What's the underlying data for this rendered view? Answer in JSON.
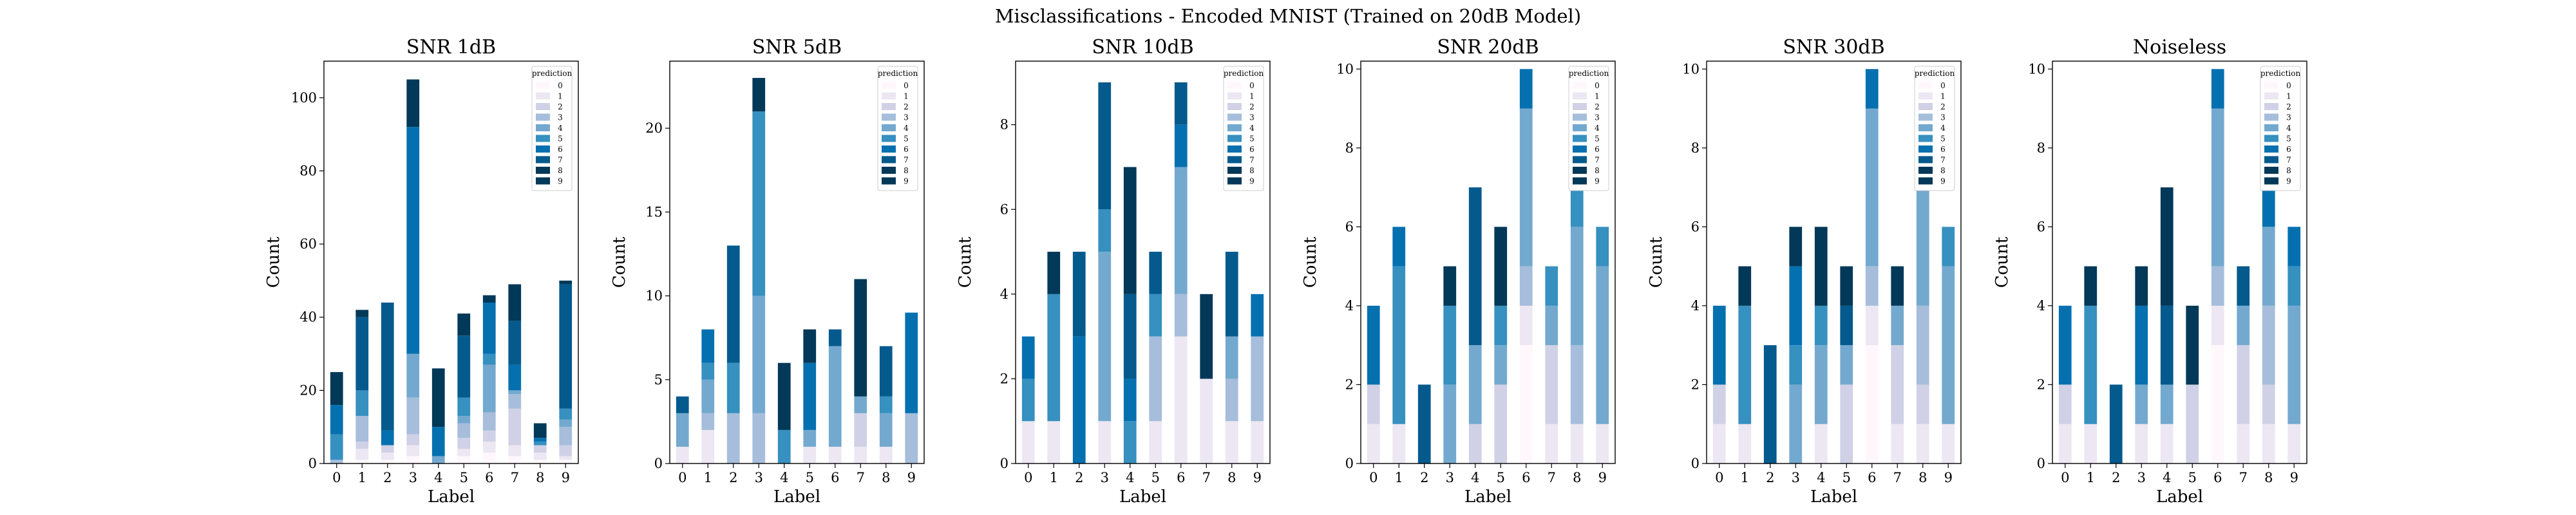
{
  "figure": {
    "suptitle": "Misclassifications - Encoded MNIST (Trained on 20dB Model)"
  },
  "palette": [
    "#fff7fb",
    "#ece7f2",
    "#d0d1e6",
    "#a6bddb",
    "#74a9cf",
    "#3690c0",
    "#0570b0",
    "#045a8d",
    "#023858",
    "#023858"
  ],
  "chart_data": [
    {
      "type": "bar",
      "stacked": true,
      "title": "SNR 1dB",
      "xlabel": "Label",
      "ylabel": "Count",
      "categories": [
        "0",
        "1",
        "2",
        "3",
        "4",
        "5",
        "6",
        "7",
        "8",
        "9"
      ],
      "ylim": [
        0,
        110
      ],
      "yticks": [
        0,
        20,
        40,
        60,
        80,
        100
      ],
      "legend": {
        "title": "prediction",
        "labels": [
          "0",
          "1",
          "2",
          "3",
          "4",
          "5",
          "6",
          "7",
          "8",
          "9"
        ],
        "placement": "top-right"
      },
      "series": [
        {
          "name": "0",
          "values": [
            0,
            1,
            1,
            2,
            0,
            2,
            3,
            2,
            1,
            1
          ]
        },
        {
          "name": "1",
          "values": [
            0,
            3,
            2,
            3,
            0,
            2,
            3,
            3,
            2,
            1
          ]
        },
        {
          "name": "2",
          "values": [
            0,
            2,
            2,
            3,
            0,
            3,
            3,
            10,
            2,
            3
          ]
        },
        {
          "name": "3",
          "values": [
            1,
            7,
            0,
            10,
            0,
            4,
            5,
            4,
            0,
            5
          ]
        },
        {
          "name": "4",
          "values": [
            0,
            0,
            0,
            12,
            2,
            2,
            13,
            1,
            0,
            2
          ]
        },
        {
          "name": "5",
          "values": [
            7,
            7,
            0,
            0,
            0,
            5,
            3,
            0,
            1,
            3
          ]
        },
        {
          "name": "6",
          "values": [
            8,
            0,
            4,
            62,
            8,
            0,
            14,
            7,
            1,
            0
          ]
        },
        {
          "name": "7",
          "values": [
            0,
            20,
            35,
            0,
            0,
            17,
            0,
            12,
            0,
            34
          ]
        },
        {
          "name": "8",
          "values": [
            9,
            2,
            0,
            13,
            16,
            6,
            2,
            10,
            4,
            1
          ]
        },
        {
          "name": "9",
          "values": [
            0,
            0,
            0,
            0,
            0,
            0,
            0,
            0,
            0,
            0
          ]
        }
      ]
    },
    {
      "type": "bar",
      "stacked": true,
      "title": "SNR 5dB",
      "xlabel": "Label",
      "ylabel": "Count",
      "categories": [
        "0",
        "1",
        "2",
        "3",
        "4",
        "5",
        "6",
        "7",
        "8",
        "9"
      ],
      "ylim": [
        0,
        24
      ],
      "yticks": [
        0,
        5,
        10,
        15,
        20
      ],
      "legend": {
        "title": "prediction",
        "labels": [
          "0",
          "1",
          "2",
          "3",
          "4",
          "5",
          "6",
          "7",
          "8",
          "9"
        ],
        "placement": "top-right"
      },
      "series": [
        {
          "name": "0",
          "values": [
            0,
            0,
            0,
            0,
            0,
            0,
            0,
            0,
            0,
            0
          ]
        },
        {
          "name": "1",
          "values": [
            1,
            2,
            0,
            0,
            0,
            1,
            1,
            1,
            1,
            0
          ]
        },
        {
          "name": "2",
          "values": [
            0,
            0,
            0,
            0,
            0,
            0,
            0,
            2,
            0,
            0
          ]
        },
        {
          "name": "3",
          "values": [
            0,
            1,
            3,
            3,
            0,
            0,
            0,
            0,
            0,
            3
          ]
        },
        {
          "name": "4",
          "values": [
            2,
            2,
            0,
            7,
            0,
            1,
            6,
            1,
            2,
            0
          ]
        },
        {
          "name": "5",
          "values": [
            0,
            1,
            3,
            11,
            2,
            0,
            0,
            0,
            1,
            0
          ]
        },
        {
          "name": "6",
          "values": [
            0,
            2,
            0,
            0,
            0,
            4,
            0,
            0,
            0,
            6
          ]
        },
        {
          "name": "7",
          "values": [
            1,
            0,
            7,
            0,
            0,
            0,
            1,
            0,
            3,
            0
          ]
        },
        {
          "name": "8",
          "values": [
            0,
            0,
            0,
            2,
            4,
            2,
            0,
            7,
            0,
            0
          ]
        },
        {
          "name": "9",
          "values": [
            0,
            0,
            0,
            0,
            0,
            0,
            0,
            0,
            0,
            0
          ]
        }
      ]
    },
    {
      "type": "bar",
      "stacked": true,
      "title": "SNR 10dB",
      "xlabel": "Label",
      "ylabel": "Count",
      "categories": [
        "0",
        "1",
        "2",
        "3",
        "4",
        "5",
        "6",
        "7",
        "8",
        "9"
      ],
      "ylim": [
        0,
        9.5
      ],
      "yticks": [
        0,
        2,
        4,
        6,
        8
      ],
      "legend": {
        "title": "prediction",
        "labels": [
          "0",
          "1",
          "2",
          "3",
          "4",
          "5",
          "6",
          "7",
          "8",
          "9"
        ],
        "placement": "top-right"
      },
      "series": [
        {
          "name": "0",
          "values": [
            0,
            0,
            0,
            0,
            0,
            0,
            0,
            0,
            0,
            0
          ]
        },
        {
          "name": "1",
          "values": [
            1,
            1,
            0,
            1,
            0,
            1,
            3,
            2,
            1,
            1
          ]
        },
        {
          "name": "2",
          "values": [
            0,
            0,
            0,
            0,
            0,
            0,
            0,
            0,
            0,
            0
          ]
        },
        {
          "name": "3",
          "values": [
            0,
            0,
            0,
            0,
            0,
            2,
            1,
            0,
            1,
            2
          ]
        },
        {
          "name": "4",
          "values": [
            0,
            0,
            0,
            4,
            0,
            0,
            3,
            0,
            1,
            0
          ]
        },
        {
          "name": "5",
          "values": [
            1,
            3,
            0,
            1,
            1,
            1,
            0,
            0,
            0,
            0
          ]
        },
        {
          "name": "6",
          "values": [
            1,
            0,
            3,
            0,
            1,
            0,
            1,
            0,
            0,
            1
          ]
        },
        {
          "name": "7",
          "values": [
            0,
            0,
            2,
            3,
            2,
            1,
            1,
            0,
            2,
            0
          ]
        },
        {
          "name": "8",
          "values": [
            0,
            1,
            0,
            0,
            3,
            0,
            0,
            2,
            0,
            0
          ]
        },
        {
          "name": "9",
          "values": [
            0,
            0,
            0,
            0,
            0,
            0,
            0,
            0,
            0,
            0
          ]
        }
      ]
    },
    {
      "type": "bar",
      "stacked": true,
      "title": "SNR 20dB",
      "xlabel": "Label",
      "ylabel": "Count",
      "categories": [
        "0",
        "1",
        "2",
        "3",
        "4",
        "5",
        "6",
        "7",
        "8",
        "9"
      ],
      "ylim": [
        0,
        10.2
      ],
      "yticks": [
        0,
        2,
        4,
        6,
        8,
        10
      ],
      "legend": {
        "title": "prediction",
        "labels": [
          "0",
          "1",
          "2",
          "3",
          "4",
          "5",
          "6",
          "7",
          "8",
          "9"
        ],
        "placement": "top-right"
      },
      "series": [
        {
          "name": "0",
          "values": [
            0,
            0,
            0,
            0,
            0,
            0,
            3,
            0,
            0,
            0
          ]
        },
        {
          "name": "1",
          "values": [
            1,
            1,
            0,
            0,
            0,
            0,
            1,
            1,
            1,
            1
          ]
        },
        {
          "name": "2",
          "values": [
            1,
            0,
            0,
            0,
            1,
            2,
            0,
            2,
            0,
            0
          ]
        },
        {
          "name": "3",
          "values": [
            0,
            0,
            0,
            0,
            0,
            0,
            1,
            0,
            2,
            0
          ]
        },
        {
          "name": "4",
          "values": [
            0,
            0,
            0,
            2,
            2,
            1,
            4,
            1,
            3,
            4
          ]
        },
        {
          "name": "5",
          "values": [
            0,
            4,
            0,
            2,
            0,
            1,
            0,
            1,
            1,
            1
          ]
        },
        {
          "name": "6",
          "values": [
            2,
            1,
            0,
            0,
            0,
            0,
            1,
            0,
            0,
            0
          ]
        },
        {
          "name": "7",
          "values": [
            0,
            0,
            2,
            0,
            4,
            0,
            0,
            0,
            0,
            0
          ]
        },
        {
          "name": "8",
          "values": [
            0,
            0,
            0,
            1,
            0,
            2,
            0,
            0,
            0,
            0
          ]
        },
        {
          "name": "9",
          "values": [
            0,
            0,
            0,
            0,
            0,
            0,
            0,
            0,
            0,
            0
          ]
        }
      ]
    },
    {
      "type": "bar",
      "stacked": true,
      "title": "SNR 30dB",
      "xlabel": "Label",
      "ylabel": "Count",
      "categories": [
        "0",
        "1",
        "2",
        "3",
        "4",
        "5",
        "6",
        "7",
        "8",
        "9"
      ],
      "ylim": [
        0,
        10.2
      ],
      "yticks": [
        0,
        2,
        4,
        6,
        8,
        10
      ],
      "legend": {
        "title": "prediction",
        "labels": [
          "0",
          "1",
          "2",
          "3",
          "4",
          "5",
          "6",
          "7",
          "8",
          "9"
        ],
        "placement": "top-right"
      },
      "series": [
        {
          "name": "0",
          "values": [
            0,
            0,
            0,
            0,
            0,
            0,
            3,
            0,
            0,
            0
          ]
        },
        {
          "name": "1",
          "values": [
            1,
            1,
            0,
            0,
            1,
            0,
            1,
            1,
            1,
            1
          ]
        },
        {
          "name": "2",
          "values": [
            1,
            0,
            0,
            0,
            0,
            2,
            0,
            2,
            1,
            0
          ]
        },
        {
          "name": "3",
          "values": [
            0,
            0,
            0,
            0,
            0,
            0,
            1,
            0,
            2,
            0
          ]
        },
        {
          "name": "4",
          "values": [
            0,
            0,
            0,
            2,
            2,
            1,
            4,
            1,
            3,
            4
          ]
        },
        {
          "name": "5",
          "values": [
            0,
            3,
            0,
            1,
            1,
            0,
            0,
            0,
            0,
            1
          ]
        },
        {
          "name": "6",
          "values": [
            2,
            0,
            0,
            2,
            0,
            0,
            1,
            0,
            1,
            0
          ]
        },
        {
          "name": "7",
          "values": [
            0,
            0,
            3,
            0,
            0,
            1,
            0,
            0,
            0,
            0
          ]
        },
        {
          "name": "8",
          "values": [
            0,
            1,
            0,
            1,
            2,
            1,
            0,
            1,
            1,
            0
          ]
        },
        {
          "name": "9",
          "values": [
            0,
            0,
            0,
            0,
            0,
            0,
            0,
            0,
            0,
            0
          ]
        }
      ]
    },
    {
      "type": "bar",
      "stacked": true,
      "title": "Noiseless",
      "xlabel": "Label",
      "ylabel": "Count",
      "categories": [
        "0",
        "1",
        "2",
        "3",
        "4",
        "5",
        "6",
        "7",
        "8",
        "9"
      ],
      "ylim": [
        0,
        10.2
      ],
      "yticks": [
        0,
        2,
        4,
        6,
        8,
        10
      ],
      "legend": {
        "title": "prediction",
        "labels": [
          "0",
          "1",
          "2",
          "3",
          "4",
          "5",
          "6",
          "7",
          "8",
          "9"
        ],
        "placement": "top-right"
      },
      "series": [
        {
          "name": "0",
          "values": [
            0,
            0,
            0,
            0,
            0,
            0,
            3,
            0,
            0,
            0
          ]
        },
        {
          "name": "1",
          "values": [
            1,
            1,
            0,
            1,
            1,
            0,
            1,
            1,
            1,
            1
          ]
        },
        {
          "name": "2",
          "values": [
            1,
            0,
            0,
            0,
            0,
            2,
            0,
            2,
            1,
            0
          ]
        },
        {
          "name": "3",
          "values": [
            0,
            0,
            0,
            0,
            0,
            0,
            1,
            0,
            2,
            0
          ]
        },
        {
          "name": "4",
          "values": [
            0,
            0,
            0,
            1,
            1,
            0,
            4,
            1,
            2,
            3
          ]
        },
        {
          "name": "5",
          "values": [
            0,
            3,
            0,
            0,
            0,
            0,
            0,
            0,
            0,
            1
          ]
        },
        {
          "name": "6",
          "values": [
            2,
            0,
            0,
            2,
            0,
            0,
            1,
            0,
            1,
            1
          ]
        },
        {
          "name": "7",
          "values": [
            0,
            0,
            2,
            0,
            2,
            0,
            0,
            1,
            1,
            0
          ]
        },
        {
          "name": "8",
          "values": [
            0,
            1,
            0,
            1,
            3,
            2,
            0,
            0,
            1,
            0
          ]
        },
        {
          "name": "9",
          "values": [
            0,
            0,
            0,
            0,
            0,
            0,
            0,
            0,
            0,
            0
          ]
        }
      ]
    }
  ]
}
